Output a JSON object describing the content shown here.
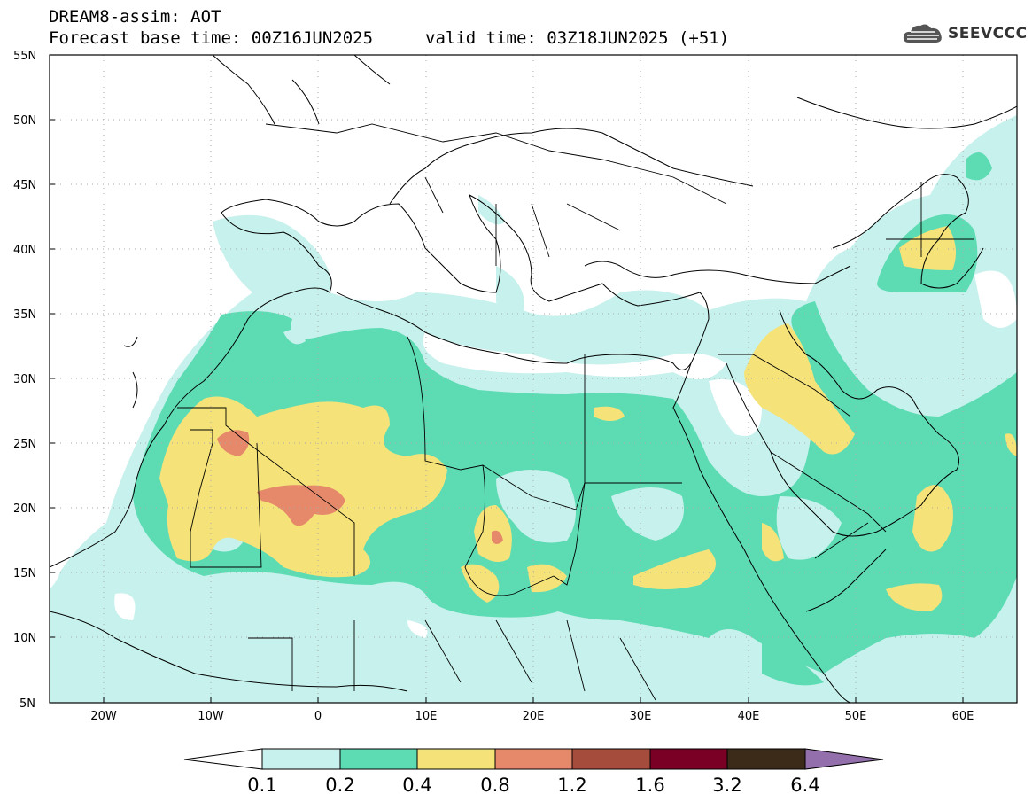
{
  "title": {
    "line1": "DREAM8-assim: AOT",
    "line2": "Forecast base time: 00Z16JUN2025",
    "valid": "valid time: 03Z18JUN2025 (+51)"
  },
  "logo": {
    "text": "SEEVCCC",
    "icon": "cloud-logo-icon"
  },
  "axes": {
    "lat_labels": [
      "55N",
      "50N",
      "45N",
      "40N",
      "35N",
      "30N",
      "25N",
      "20N",
      "15N",
      "10N",
      "5N"
    ],
    "lon_labels": [
      "20W",
      "10W",
      "0",
      "10E",
      "20E",
      "30E",
      "40E",
      "50E",
      "60E"
    ],
    "lat_range": [
      5,
      55
    ],
    "lon_range": [
      -25,
      65
    ]
  },
  "colorbar": {
    "labels": [
      "0.1",
      "0.2",
      "0.4",
      "0.8",
      "1.2",
      "1.6",
      "3.2",
      "6.4"
    ],
    "colors": {
      "below": "#ffffff",
      "c01_02": "#c6f1ec",
      "c02_04": "#5ddcb4",
      "c04_08": "#f5e37a",
      "c08_12": "#e6896a",
      "c12_16": "#a64c3c",
      "c16_32": "#7a0026",
      "c32_64": "#3d2b1a",
      "above": "#9370ab"
    }
  }
}
